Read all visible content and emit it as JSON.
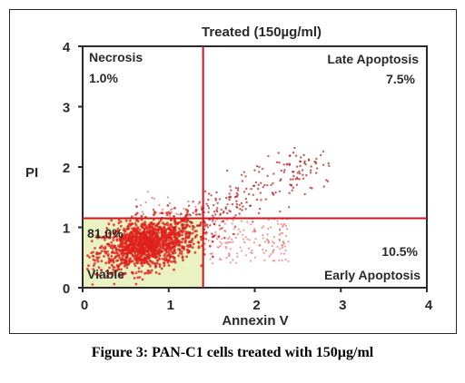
{
  "caption": "Figure 3: PAN-C1 cells treated with 150µg/ml",
  "chart_data": {
    "type": "scatter",
    "title": "Treated (150µg/ml)",
    "xlabel": "Annexin V",
    "ylabel": "PI",
    "xlim": [
      0,
      4
    ],
    "ylim": [
      0,
      4
    ],
    "xticks": [
      "0",
      "1",
      "2",
      "3",
      "4"
    ],
    "yticks": [
      "0",
      "1",
      "2",
      "3",
      "4"
    ],
    "gates": {
      "x": 1.4,
      "y": 1.15
    },
    "quadrants": [
      {
        "name": "Necrosis",
        "percent": "1.0%"
      },
      {
        "name": "Late Apoptosis",
        "percent": "7.5%"
      },
      {
        "name": "Viable",
        "percent": "81.0%"
      },
      {
        "name": "Early Apoptosis",
        "percent": "10.5%"
      }
    ],
    "colors": {
      "points": "#e0201c",
      "late_points": "#b01818",
      "gates": "#d4141c",
      "viable_fill": "#eaf2c4",
      "axis": "#2a2a2a"
    }
  }
}
